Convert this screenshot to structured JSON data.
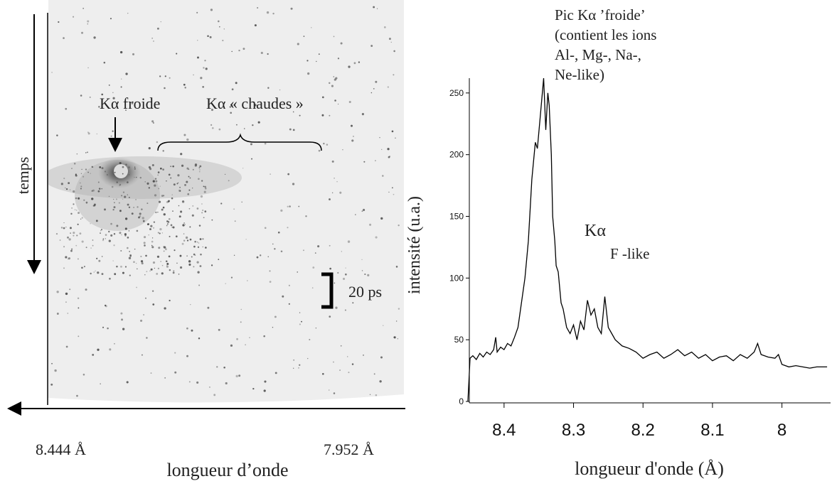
{
  "image_panel": {
    "time_label": "temps",
    "cold_label": "Kα froide",
    "hot_label": "Kα « chaudes »",
    "scale_label": "20 ps",
    "left_wavelength": "8.444 Å",
    "right_wavelength": "7.952 Å",
    "axis_label": "longueur d’onde"
  },
  "chart_data": {
    "type": "line",
    "x_label": "longueur d'onde (Å)",
    "y_label": "intensité (u.a.)",
    "annotations": [
      {
        "lines": [
          "Pic Kα ’froide’",
          "(contient les ions",
          "Al-, Mg-, Na-,",
          "Ne-like)"
        ]
      },
      {
        "lines": [
          "Kα",
          "F -like"
        ]
      }
    ],
    "color": "#000000",
    "xlim": [
      8.45,
      7.93
    ],
    "ylim": [
      0,
      262
    ],
    "xticks": [
      8.4,
      8.3,
      8.2,
      8.1,
      8.0
    ],
    "yticks": [
      0,
      50,
      100,
      150,
      200,
      250
    ],
    "x": [
      8.452,
      8.449,
      8.445,
      8.44,
      8.435,
      8.43,
      8.425,
      8.42,
      8.415,
      8.412,
      8.41,
      8.405,
      8.4,
      8.395,
      8.39,
      8.385,
      8.38,
      8.375,
      8.37,
      8.365,
      8.36,
      8.355,
      8.352,
      8.348,
      8.343,
      8.34,
      8.337,
      8.335,
      8.332,
      8.33,
      8.327,
      8.325,
      8.322,
      8.318,
      8.315,
      8.31,
      8.305,
      8.3,
      8.295,
      8.29,
      8.285,
      8.28,
      8.275,
      8.27,
      8.265,
      8.26,
      8.255,
      8.25,
      8.245,
      8.24,
      8.23,
      8.22,
      8.21,
      8.2,
      8.19,
      8.18,
      8.17,
      8.16,
      8.15,
      8.14,
      8.13,
      8.12,
      8.11,
      8.1,
      8.09,
      8.08,
      8.07,
      8.06,
      8.05,
      8.04,
      8.035,
      8.03,
      8.02,
      8.01,
      8.005,
      8.0,
      7.99,
      7.98,
      7.97,
      7.96,
      7.95,
      7.935
    ],
    "values": [
      0,
      35,
      37,
      34,
      39,
      36,
      40,
      38,
      42,
      52,
      40,
      44,
      42,
      47,
      45,
      52,
      60,
      80,
      100,
      130,
      180,
      210,
      205,
      230,
      262,
      220,
      250,
      240,
      200,
      150,
      130,
      110,
      105,
      80,
      75,
      60,
      55,
      62,
      50,
      65,
      58,
      82,
      70,
      75,
      60,
      55,
      85,
      60,
      55,
      50,
      45,
      43,
      40,
      35,
      38,
      40,
      35,
      38,
      42,
      37,
      40,
      35,
      38,
      33,
      36,
      37,
      33,
      38,
      35,
      40,
      47,
      38,
      36,
      35,
      38,
      30,
      28,
      29,
      28,
      27,
      28,
      28
    ]
  }
}
